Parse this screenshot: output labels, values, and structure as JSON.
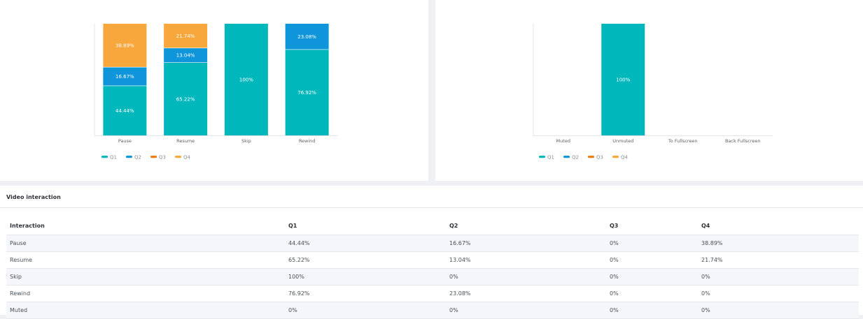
{
  "colors": {
    "q1": "#00b8bc",
    "q2": "#0f95da",
    "q3": "#f07d12",
    "q4": "#f8a73d"
  },
  "chart_data": [
    {
      "type": "bar",
      "stacked": true,
      "categories": [
        "Pause",
        "Resume",
        "Skip",
        "Rewind"
      ],
      "series": [
        {
          "name": "Q1",
          "values": [
            44.44,
            65.22,
            100,
            76.92
          ]
        },
        {
          "name": "Q2",
          "values": [
            16.67,
            13.04,
            0,
            23.08
          ]
        },
        {
          "name": "Q3",
          "values": [
            0,
            0,
            0,
            0
          ]
        },
        {
          "name": "Q4",
          "values": [
            38.89,
            21.74,
            0,
            0
          ]
        }
      ],
      "ylim": [
        0,
        100
      ],
      "legend": "bottom-left",
      "grid": false
    },
    {
      "type": "bar",
      "stacked": true,
      "categories": [
        "Muted",
        "Unmuted",
        "To Fullscreen",
        "Back Fullscreen"
      ],
      "series": [
        {
          "name": "Q1",
          "values": [
            0,
            100,
            0,
            0
          ]
        },
        {
          "name": "Q2",
          "values": [
            0,
            0,
            0,
            0
          ]
        },
        {
          "name": "Q3",
          "values": [
            0,
            0,
            0,
            0
          ]
        },
        {
          "name": "Q4",
          "values": [
            0,
            0,
            0,
            0
          ]
        }
      ],
      "ylim": [
        0,
        100
      ],
      "legend": "bottom-left",
      "grid": false
    }
  ],
  "table": {
    "title": "Video interaction",
    "headers": [
      "Interaction",
      "Q1",
      "Q2",
      "Q3",
      "Q4"
    ],
    "rows": [
      [
        "Pause",
        "44.44%",
        "16.67%",
        "0%",
        "38.89%"
      ],
      [
        "Resume",
        "65.22%",
        "13.04%",
        "0%",
        "21.74%"
      ],
      [
        "Skip",
        "100%",
        "0%",
        "0%",
        "0%"
      ],
      [
        "Rewind",
        "76.92%",
        "23.08%",
        "0%",
        "0%"
      ],
      [
        "Muted",
        "0%",
        "0%",
        "0%",
        "0%"
      ]
    ]
  }
}
